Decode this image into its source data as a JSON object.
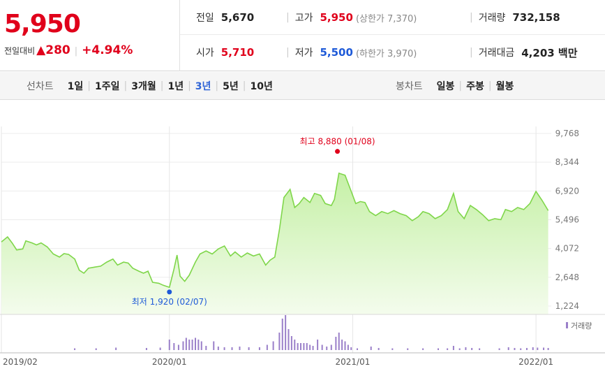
{
  "quote": {
    "price": "5,950",
    "change_label": "전일대비",
    "change_arrow": "▲",
    "change_value": "280",
    "change_sep": "|",
    "change_pct": "+4.94%"
  },
  "stats": {
    "prev_close": {
      "label": "전일",
      "value": "5,670"
    },
    "high": {
      "label": "고가",
      "value": "5,950",
      "sub": "(상한가 7,370)"
    },
    "volume": {
      "label": "거래량",
      "value": "732,158"
    },
    "open": {
      "label": "시가",
      "value": "5,710"
    },
    "low": {
      "label": "저가",
      "value": "5,500",
      "sub": "(하한가 3,970)"
    },
    "amount": {
      "label": "거래대금",
      "value": "4,203 백만"
    },
    "divider": "|"
  },
  "line_tabs": {
    "label": "선차트",
    "items": [
      "1일",
      "1주일",
      "3개월",
      "1년",
      "3년",
      "5년",
      "10년"
    ],
    "active": "3년",
    "sep": "|"
  },
  "candle_tabs": {
    "label": "봉차트",
    "items": [
      "일봉",
      "주봉",
      "월봉"
    ],
    "sep": "|"
  },
  "chart_data": {
    "type": "area",
    "title": "",
    "xlabel": "",
    "ylabel": "",
    "x_tick_labels": [
      "2019/02",
      "2020/01",
      "2021/01",
      "2022/01"
    ],
    "x_tick_positions": [
      0,
      11,
      23,
      35
    ],
    "y_tick_labels": [
      "9,768",
      "8,344",
      "6,920",
      "5,496",
      "4,072",
      "2,648",
      "1,224"
    ],
    "y_ticks": [
      9768,
      8344,
      6920,
      5496,
      4072,
      2648,
      1224
    ],
    "ylim": [
      1224,
      9768
    ],
    "x_range": [
      0,
      36
    ],
    "series": [
      {
        "values": [
          [
            0.0,
            4400
          ],
          [
            0.4,
            4650
          ],
          [
            0.7,
            4350
          ],
          [
            1.0,
            4000
          ],
          [
            1.4,
            4050
          ],
          [
            1.6,
            4450
          ],
          [
            2.0,
            4350
          ],
          [
            2.3,
            4250
          ],
          [
            2.6,
            4350
          ],
          [
            3.0,
            4150
          ],
          [
            3.4,
            3800
          ],
          [
            3.8,
            3650
          ],
          [
            4.1,
            3820
          ],
          [
            4.4,
            3780
          ],
          [
            4.8,
            3550
          ],
          [
            5.1,
            3000
          ],
          [
            5.4,
            2850
          ],
          [
            5.7,
            3100
          ],
          [
            6.1,
            3150
          ],
          [
            6.5,
            3200
          ],
          [
            6.9,
            3400
          ],
          [
            7.3,
            3550
          ],
          [
            7.6,
            3250
          ],
          [
            8.0,
            3400
          ],
          [
            8.3,
            3350
          ],
          [
            8.6,
            3100
          ],
          [
            9.0,
            2950
          ],
          [
            9.3,
            2850
          ],
          [
            9.6,
            2950
          ],
          [
            9.9,
            2400
          ],
          [
            10.3,
            2350
          ],
          [
            10.6,
            2250
          ],
          [
            11.0,
            2150
          ],
          [
            11.3,
            3050
          ],
          [
            11.5,
            3750
          ],
          [
            11.7,
            2700
          ],
          [
            12.0,
            2450
          ],
          [
            12.3,
            2750
          ],
          [
            12.7,
            3400
          ],
          [
            13.0,
            3800
          ],
          [
            13.4,
            3950
          ],
          [
            13.8,
            3800
          ],
          [
            14.2,
            4050
          ],
          [
            14.6,
            4200
          ],
          [
            15.0,
            3700
          ],
          [
            15.3,
            3900
          ],
          [
            15.7,
            3650
          ],
          [
            16.1,
            3850
          ],
          [
            16.5,
            3700
          ],
          [
            16.9,
            3800
          ],
          [
            17.3,
            3250
          ],
          [
            17.6,
            3500
          ],
          [
            17.9,
            3650
          ],
          [
            18.2,
            5000
          ],
          [
            18.5,
            6600
          ],
          [
            18.9,
            7000
          ],
          [
            19.2,
            6100
          ],
          [
            19.5,
            6300
          ],
          [
            19.8,
            6600
          ],
          [
            20.2,
            6350
          ],
          [
            20.5,
            6800
          ],
          [
            20.9,
            6700
          ],
          [
            21.2,
            6300
          ],
          [
            21.6,
            6200
          ],
          [
            21.8,
            6500
          ],
          [
            22.1,
            7800
          ],
          [
            22.5,
            7700
          ],
          [
            22.9,
            6900
          ],
          [
            23.2,
            6300
          ],
          [
            23.5,
            6400
          ],
          [
            23.8,
            6350
          ],
          [
            24.1,
            5900
          ],
          [
            24.5,
            5700
          ],
          [
            24.9,
            5900
          ],
          [
            25.3,
            5800
          ],
          [
            25.7,
            5950
          ],
          [
            26.1,
            5800
          ],
          [
            26.5,
            5700
          ],
          [
            26.9,
            5450
          ],
          [
            27.3,
            5650
          ],
          [
            27.6,
            5900
          ],
          [
            28.0,
            5800
          ],
          [
            28.4,
            5550
          ],
          [
            28.8,
            5700
          ],
          [
            29.2,
            6000
          ],
          [
            29.6,
            6800
          ],
          [
            29.9,
            5900
          ],
          [
            30.3,
            5550
          ],
          [
            30.7,
            6200
          ],
          [
            31.1,
            6000
          ],
          [
            31.5,
            5750
          ],
          [
            31.9,
            5450
          ],
          [
            32.3,
            5550
          ],
          [
            32.7,
            5500
          ],
          [
            33.0,
            6000
          ],
          [
            33.4,
            5900
          ],
          [
            33.8,
            6100
          ],
          [
            34.2,
            6000
          ],
          [
            34.6,
            6300
          ],
          [
            35.0,
            6900
          ],
          [
            35.4,
            6450
          ],
          [
            35.8,
            5950
          ]
        ]
      }
    ],
    "annotations": {
      "high": {
        "text": "최고 8,880 (01/08)",
        "x": 22.0,
        "y": 8880
      },
      "low": {
        "text": "최저 1,920 (02/07)",
        "x": 11.0,
        "y": 1920
      }
    },
    "volume_legend": "거래량",
    "volume": [
      [
        4.8,
        0.05
      ],
      [
        6.2,
        0.05
      ],
      [
        7.5,
        0.07
      ],
      [
        9.5,
        0.06
      ],
      [
        10.4,
        0.07
      ],
      [
        11.0,
        0.3
      ],
      [
        11.3,
        0.2
      ],
      [
        11.6,
        0.15
      ],
      [
        11.9,
        0.25
      ],
      [
        12.1,
        0.35
      ],
      [
        12.3,
        0.3
      ],
      [
        12.5,
        0.3
      ],
      [
        12.7,
        0.35
      ],
      [
        12.9,
        0.3
      ],
      [
        13.1,
        0.25
      ],
      [
        13.4,
        0.12
      ],
      [
        13.9,
        0.25
      ],
      [
        14.2,
        0.1
      ],
      [
        14.6,
        0.08
      ],
      [
        15.1,
        0.08
      ],
      [
        15.6,
        0.1
      ],
      [
        16.2,
        0.08
      ],
      [
        16.9,
        0.08
      ],
      [
        17.4,
        0.15
      ],
      [
        17.8,
        0.25
      ],
      [
        18.2,
        0.5
      ],
      [
        18.4,
        0.9
      ],
      [
        18.6,
        1.0
      ],
      [
        18.8,
        0.6
      ],
      [
        19.0,
        0.4
      ],
      [
        19.2,
        0.3
      ],
      [
        19.4,
        0.2
      ],
      [
        19.6,
        0.2
      ],
      [
        19.8,
        0.2
      ],
      [
        20.0,
        0.2
      ],
      [
        20.2,
        0.15
      ],
      [
        20.4,
        0.12
      ],
      [
        20.7,
        0.3
      ],
      [
        21.0,
        0.15
      ],
      [
        21.3,
        0.1
      ],
      [
        21.6,
        0.15
      ],
      [
        21.9,
        0.38
      ],
      [
        22.1,
        0.5
      ],
      [
        22.3,
        0.3
      ],
      [
        22.5,
        0.25
      ],
      [
        22.7,
        0.15
      ],
      [
        22.9,
        0.08
      ],
      [
        23.3,
        0.05
      ],
      [
        24.2,
        0.1
      ],
      [
        24.7,
        0.06
      ],
      [
        25.6,
        0.05
      ],
      [
        26.6,
        0.05
      ],
      [
        27.6,
        0.05
      ],
      [
        28.6,
        0.05
      ],
      [
        29.2,
        0.05
      ],
      [
        29.6,
        0.12
      ],
      [
        30.0,
        0.05
      ],
      [
        30.4,
        0.08
      ],
      [
        30.8,
        0.06
      ],
      [
        31.3,
        0.05
      ],
      [
        32.6,
        0.05
      ],
      [
        33.2,
        0.08
      ],
      [
        33.6,
        0.06
      ],
      [
        34.0,
        0.05
      ],
      [
        34.4,
        0.06
      ],
      [
        34.8,
        0.08
      ],
      [
        35.1,
        0.07
      ],
      [
        35.5,
        0.07
      ],
      [
        35.8,
        0.06
      ]
    ],
    "colors": {
      "line": "#7fd64a",
      "fill_top": "#c5f0a6",
      "fill_bottom": "#f4fced",
      "volume": "#9a7fc9",
      "high": "#e0001b",
      "low": "#1e5ad8"
    }
  }
}
